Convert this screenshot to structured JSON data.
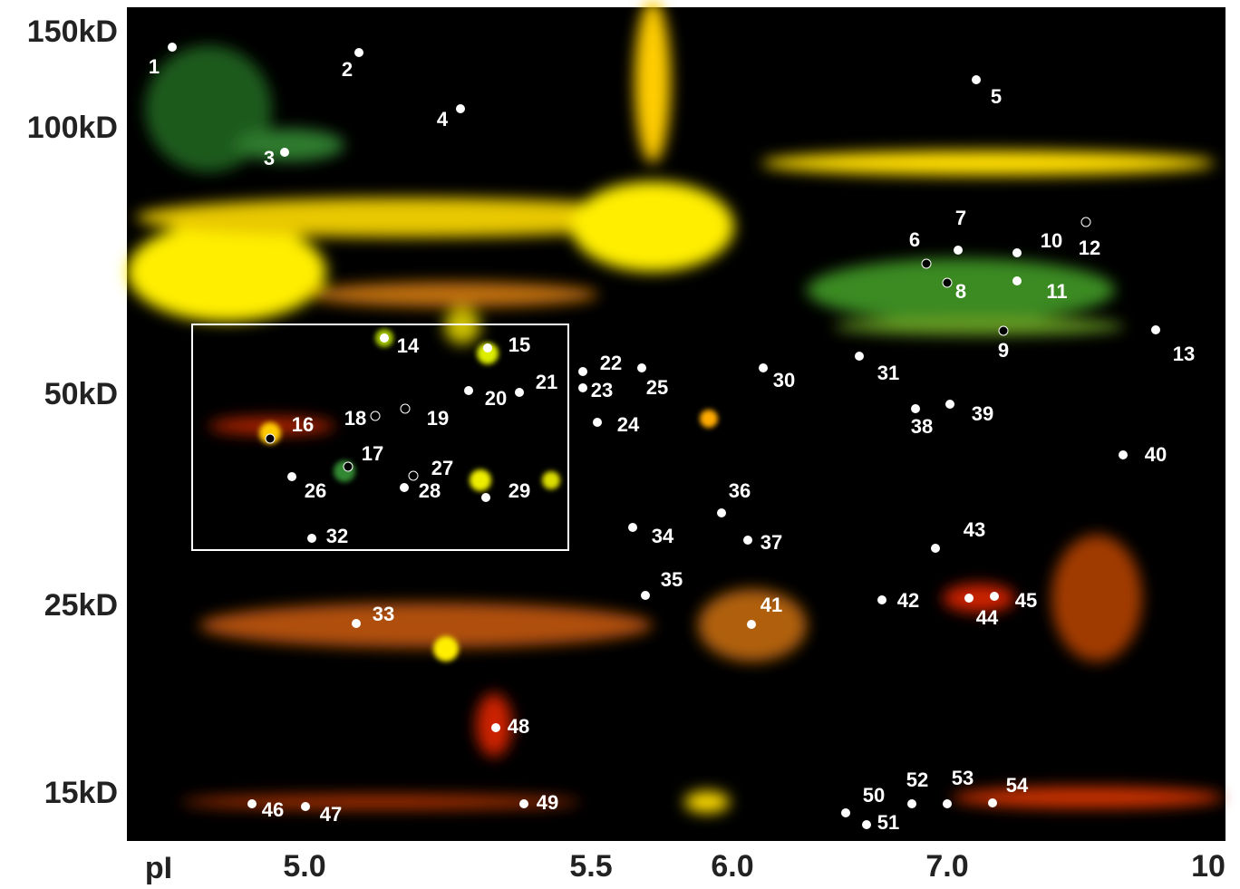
{
  "y_axis_labels": [
    "150kD",
    "100kD",
    "50kD",
    "25kD",
    "15kD"
  ],
  "x_axis_title": "pI",
  "x_axis_labels": [
    "5.0",
    "5.5",
    "6.0",
    "7.0",
    "10"
  ],
  "spots": [
    "1",
    "2",
    "3",
    "4",
    "5",
    "6",
    "7",
    "8",
    "9",
    "10",
    "11",
    "12",
    "13",
    "14",
    "15",
    "16",
    "17",
    "18",
    "19",
    "20",
    "21",
    "22",
    "23",
    "24",
    "25",
    "26",
    "27",
    "28",
    "29",
    "30",
    "31",
    "32",
    "33",
    "34",
    "35",
    "36",
    "37",
    "38",
    "39",
    "40",
    "41",
    "42",
    "43",
    "44",
    "45",
    "46",
    "47",
    "48",
    "49",
    "50",
    "51",
    "52",
    "53",
    "54"
  ]
}
